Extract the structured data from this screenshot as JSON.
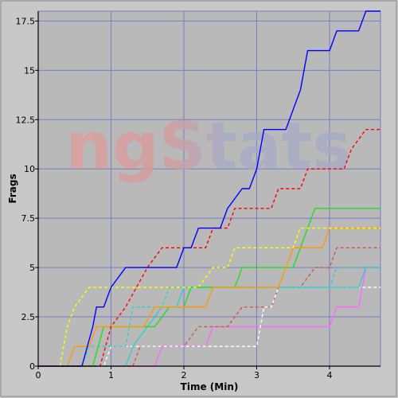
{
  "chart_data": {
    "type": "line",
    "title": "",
    "xlabel": "Time (Min)",
    "ylabel": "Frags",
    "xlim": [
      0,
      4.7
    ],
    "ylim": [
      0,
      18
    ],
    "x_ticks": [
      "0",
      "1",
      "2",
      "3",
      "4"
    ],
    "x_tick_values": [
      0,
      1,
      2,
      3,
      4
    ],
    "y_ticks": [
      "0",
      "2.5",
      "5",
      "7.5",
      "10",
      "12.5",
      "15",
      "17.5"
    ],
    "y_tick_values": [
      0,
      2.5,
      5,
      7.5,
      10,
      12.5,
      15,
      17.5
    ],
    "grid": true,
    "watermark": "ngStats",
    "colors": {
      "background": "#c8c8c8",
      "plot_background": "#b9b9b9",
      "grid": "#7b7bc8",
      "axis": "#000000"
    },
    "series": [
      {
        "color": "#ff66ff",
        "dash": false,
        "points": [
          [
            0,
            0
          ],
          [
            1.6,
            0
          ],
          [
            1.7,
            1
          ],
          [
            2.3,
            1
          ],
          [
            2.4,
            2
          ],
          [
            4.0,
            2
          ],
          [
            4.1,
            3
          ],
          [
            4.4,
            3
          ],
          [
            4.5,
            5
          ],
          [
            4.7,
            5
          ]
        ]
      },
      {
        "color": "#cc5555",
        "dash": true,
        "points": [
          [
            0,
            0
          ],
          [
            1.3,
            0
          ],
          [
            1.4,
            1
          ],
          [
            2.0,
            1
          ],
          [
            2.2,
            2
          ],
          [
            2.6,
            2
          ],
          [
            2.8,
            3
          ],
          [
            3.2,
            3
          ],
          [
            3.3,
            4
          ],
          [
            3.6,
            4
          ],
          [
            3.8,
            5
          ],
          [
            4.0,
            5
          ],
          [
            4.1,
            6
          ],
          [
            4.7,
            6
          ]
        ]
      },
      {
        "color": "#ffffff",
        "dash": true,
        "points": [
          [
            0,
            0
          ],
          [
            0.9,
            0
          ],
          [
            1.0,
            1
          ],
          [
            1.6,
            1
          ],
          [
            1.7,
            1
          ],
          [
            3.0,
            1
          ],
          [
            3.1,
            3
          ],
          [
            3.2,
            3
          ],
          [
            3.3,
            4
          ],
          [
            4.7,
            4
          ]
        ]
      },
      {
        "color": "#33cccc",
        "dash": false,
        "points": [
          [
            0,
            0
          ],
          [
            1.2,
            0
          ],
          [
            1.3,
            1
          ],
          [
            1.5,
            2
          ],
          [
            1.7,
            3
          ],
          [
            1.9,
            3
          ],
          [
            2.0,
            4
          ],
          [
            4.4,
            4
          ],
          [
            4.5,
            5
          ],
          [
            4.7,
            5
          ]
        ]
      },
      {
        "color": "#33cccc",
        "dash": true,
        "points": [
          [
            0,
            0
          ],
          [
            0.6,
            0
          ],
          [
            0.7,
            1
          ],
          [
            1.2,
            1
          ],
          [
            1.3,
            3
          ],
          [
            1.7,
            3
          ],
          [
            1.8,
            4
          ],
          [
            4.0,
            4
          ],
          [
            4.1,
            5
          ],
          [
            4.7,
            5
          ]
        ]
      },
      {
        "color": "#22dd22",
        "dash": false,
        "points": [
          [
            0,
            0
          ],
          [
            0.75,
            0
          ],
          [
            0.9,
            2
          ],
          [
            1.2,
            2
          ],
          [
            1.3,
            2
          ],
          [
            1.6,
            2
          ],
          [
            1.8,
            3
          ],
          [
            2.0,
            3
          ],
          [
            2.1,
            4
          ],
          [
            2.7,
            4
          ],
          [
            2.8,
            5
          ],
          [
            3.5,
            5
          ],
          [
            3.6,
            6
          ],
          [
            3.8,
            8
          ],
          [
            4.7,
            8
          ]
        ]
      },
      {
        "color": "#ff9900",
        "dash": false,
        "points": [
          [
            0,
            0
          ],
          [
            0.4,
            0
          ],
          [
            0.5,
            1
          ],
          [
            0.7,
            1
          ],
          [
            0.8,
            2
          ],
          [
            1.45,
            2
          ],
          [
            1.6,
            3
          ],
          [
            2.3,
            3
          ],
          [
            2.4,
            4
          ],
          [
            3.3,
            4
          ],
          [
            3.4,
            5
          ],
          [
            3.5,
            6
          ],
          [
            3.9,
            6
          ],
          [
            4.0,
            7
          ],
          [
            4.7,
            7
          ]
        ]
      },
      {
        "color": "#ffff00",
        "dash": true,
        "points": [
          [
            0,
            0
          ],
          [
            0.3,
            0
          ],
          [
            0.4,
            2
          ],
          [
            0.5,
            3
          ],
          [
            0.7,
            4
          ],
          [
            2.2,
            4
          ],
          [
            2.4,
            5
          ],
          [
            2.6,
            5
          ],
          [
            2.7,
            6
          ],
          [
            3.5,
            6
          ],
          [
            3.6,
            7
          ],
          [
            4.1,
            7
          ],
          [
            4.2,
            7
          ],
          [
            4.7,
            7
          ]
        ]
      },
      {
        "color": "#ff0000",
        "dash": true,
        "points": [
          [
            0,
            0
          ],
          [
            0.85,
            0
          ],
          [
            1.0,
            2
          ],
          [
            1.2,
            3
          ],
          [
            1.5,
            5
          ],
          [
            1.7,
            6
          ],
          [
            2.3,
            6
          ],
          [
            2.4,
            7
          ],
          [
            2.6,
            7
          ],
          [
            2.7,
            8
          ],
          [
            3.2,
            8
          ],
          [
            3.3,
            9
          ],
          [
            3.6,
            9
          ],
          [
            3.7,
            10
          ],
          [
            4.2,
            10
          ],
          [
            4.3,
            11
          ],
          [
            4.5,
            12
          ],
          [
            4.7,
            12
          ]
        ]
      },
      {
        "color": "#0000ff",
        "dash": false,
        "points": [
          [
            0,
            0
          ],
          [
            0.6,
            0
          ],
          [
            0.75,
            2
          ],
          [
            0.8,
            3
          ],
          [
            0.9,
            3
          ],
          [
            1.0,
            4
          ],
          [
            1.2,
            5
          ],
          [
            1.9,
            5
          ],
          [
            2.0,
            6
          ],
          [
            2.1,
            6
          ],
          [
            2.2,
            7
          ],
          [
            2.5,
            7
          ],
          [
            2.6,
            8
          ],
          [
            2.8,
            9
          ],
          [
            2.9,
            9
          ],
          [
            3.0,
            10
          ],
          [
            3.1,
            12
          ],
          [
            3.4,
            12
          ],
          [
            3.5,
            13
          ],
          [
            3.6,
            14
          ],
          [
            3.7,
            16
          ],
          [
            4.0,
            16
          ],
          [
            4.1,
            17
          ],
          [
            4.4,
            17
          ],
          [
            4.5,
            18
          ],
          [
            4.7,
            18
          ]
        ]
      }
    ]
  }
}
